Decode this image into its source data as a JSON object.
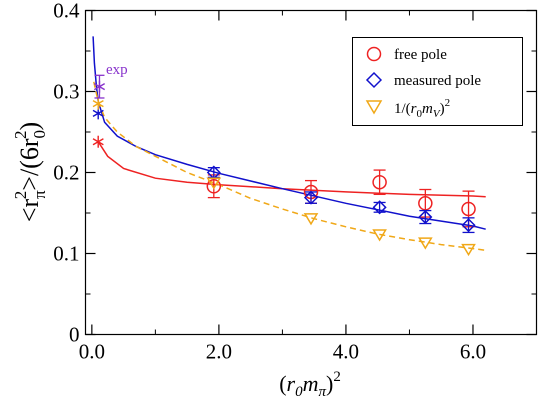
{
  "chart_data": {
    "type": "scatter",
    "xlabel": "(r0mπ)2",
    "ylabel": "<rπ2>/(6r02)",
    "xlim": [
      -0.1,
      7.0
    ],
    "ylim": [
      0,
      0.4
    ],
    "xticks": [
      0.0,
      2.0,
      4.0,
      6.0
    ],
    "xtick_labels": [
      "0.0",
      "2.0",
      "4.0",
      "6.0"
    ],
    "yticks": [
      0,
      0.1,
      0.2,
      0.3,
      0.4
    ],
    "ytick_labels": [
      "0",
      "0.1",
      "0.2",
      "0.3",
      "0.4"
    ],
    "grid": false,
    "legend_position": "top-right",
    "annotation": "exp",
    "series": [
      {
        "name": "free pole",
        "marker": "circle",
        "color": "#ee2222",
        "points": [
          {
            "x": 1.92,
            "y": 0.183,
            "err": 0.014
          },
          {
            "x": 3.45,
            "y": 0.176,
            "err": 0.014
          },
          {
            "x": 4.53,
            "y": 0.188,
            "err": 0.015
          },
          {
            "x": 5.25,
            "y": 0.162,
            "err": 0.017
          },
          {
            "x": 5.93,
            "y": 0.155,
            "err": 0.022
          }
        ],
        "chiral_point": {
          "x": 0.1,
          "y": 0.238
        },
        "fit": [
          [
            0.1,
            0.238
          ],
          [
            0.25,
            0.22
          ],
          [
            0.5,
            0.205
          ],
          [
            1.0,
            0.193
          ],
          [
            1.5,
            0.188
          ],
          [
            2.0,
            0.185
          ],
          [
            3.0,
            0.18
          ],
          [
            4.0,
            0.176
          ],
          [
            5.0,
            0.173
          ],
          [
            6.0,
            0.171
          ],
          [
            6.2,
            0.17
          ]
        ]
      },
      {
        "name": "measured pole",
        "marker": "diamond",
        "color": "#1111cc",
        "points": [
          {
            "x": 1.92,
            "y": 0.2,
            "err": 0.006
          },
          {
            "x": 3.45,
            "y": 0.169,
            "err": 0.007
          },
          {
            "x": 4.53,
            "y": 0.157,
            "err": 0.006
          },
          {
            "x": 5.25,
            "y": 0.145,
            "err": 0.008
          },
          {
            "x": 5.93,
            "y": 0.135,
            "err": 0.009
          }
        ],
        "chiral_point": {
          "x": 0.1,
          "y": 0.273
        },
        "fit": [
          [
            0.02,
            0.368
          ],
          [
            0.04,
            0.335
          ],
          [
            0.07,
            0.308
          ],
          [
            0.1,
            0.288
          ],
          [
            0.2,
            0.262
          ],
          [
            0.4,
            0.245
          ],
          [
            0.7,
            0.232
          ],
          [
            1.0,
            0.222
          ],
          [
            1.5,
            0.21
          ],
          [
            2.0,
            0.199
          ],
          [
            3.0,
            0.18
          ],
          [
            4.0,
            0.162
          ],
          [
            5.0,
            0.146
          ],
          [
            6.0,
            0.134
          ],
          [
            6.2,
            0.13
          ]
        ]
      },
      {
        "name": "1/(r0mV)2",
        "marker": "triangle-down",
        "color": "#f0a818",
        "points": [
          {
            "x": 1.92,
            "y": 0.188
          },
          {
            "x": 3.45,
            "y": 0.144
          },
          {
            "x": 4.53,
            "y": 0.124
          },
          {
            "x": 5.25,
            "y": 0.114
          },
          {
            "x": 5.93,
            "y": 0.106
          }
        ],
        "chiral_point": {
          "x": 0.1,
          "y": 0.285
        },
        "fit": [
          [
            0.03,
            0.312
          ],
          [
            0.07,
            0.298
          ],
          [
            0.1,
            0.288
          ],
          [
            0.2,
            0.268
          ],
          [
            0.4,
            0.25
          ],
          [
            0.7,
            0.232
          ],
          [
            1.0,
            0.22
          ],
          [
            1.5,
            0.2
          ],
          [
            2.0,
            0.185
          ],
          [
            2.5,
            0.168
          ],
          [
            3.0,
            0.155
          ],
          [
            3.5,
            0.143
          ],
          [
            4.0,
            0.133
          ],
          [
            4.5,
            0.124
          ],
          [
            5.0,
            0.117
          ],
          [
            5.5,
            0.111
          ],
          [
            6.0,
            0.106
          ],
          [
            6.2,
            0.104
          ]
        ]
      }
    ],
    "experiment": {
      "label": "exp",
      "x": 0.12,
      "y": 0.306,
      "err": 0.014,
      "color": "#8833cc"
    }
  }
}
